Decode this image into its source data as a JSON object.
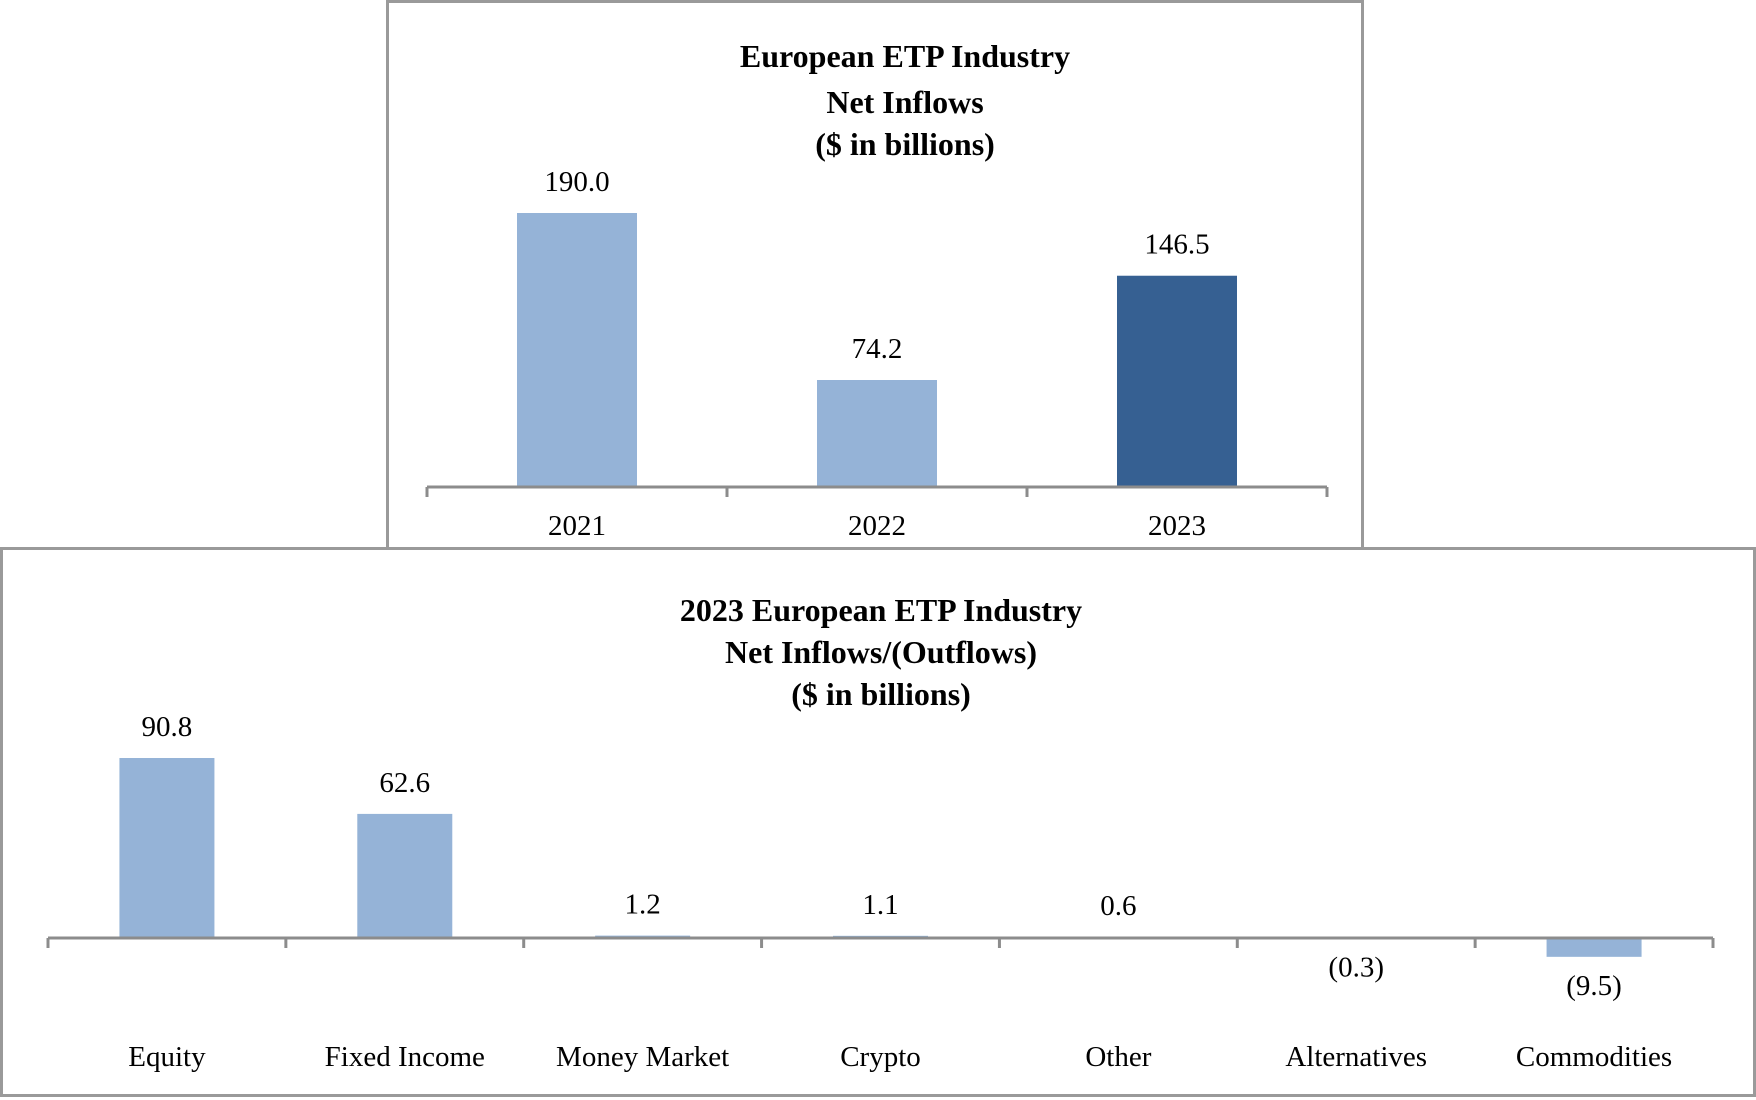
{
  "chart_data": [
    {
      "type": "bar",
      "title_lines": [
        "European ETP Industry",
        "Net Inflows",
        "($ in billions)"
      ],
      "categories": [
        "2021",
        "2022",
        "2023"
      ],
      "values": [
        190.0,
        74.2,
        146.5
      ],
      "value_labels": [
        "190.0",
        "74.2",
        "146.5"
      ],
      "bar_colors": [
        "#95b3d7",
        "#95b3d7",
        "#366092"
      ],
      "xlabel": "",
      "ylabel": "",
      "ylim": [
        0,
        190
      ],
      "grid": false,
      "legend": "none"
    },
    {
      "type": "bar",
      "title_lines": [
        "2023 European ETP Industry",
        "Net Inflows/(Outflows)",
        "($ in billions)"
      ],
      "categories": [
        "Equity",
        "Fixed Income",
        "Money Market",
        "Crypto",
        "Other",
        "Alternatives",
        "Commodities"
      ],
      "values": [
        90.8,
        62.6,
        1.2,
        1.1,
        0.6,
        -0.3,
        -9.5
      ],
      "value_labels": [
        "90.8",
        "62.6",
        "1.2",
        "1.1",
        "0.6",
        "(0.3)",
        "(9.5)"
      ],
      "bar_colors": [
        "#95b3d7",
        "#95b3d7",
        "#95b3d7",
        "#95b3d7",
        "#95b3d7",
        "#95b3d7",
        "#95b3d7"
      ],
      "xlabel": "",
      "ylabel": "",
      "ylim": [
        -9.5,
        90.8
      ],
      "grid": false,
      "legend": "none"
    }
  ],
  "colors": {
    "axis": "#8c8c8c",
    "panel_border": "#9a9a9a"
  }
}
